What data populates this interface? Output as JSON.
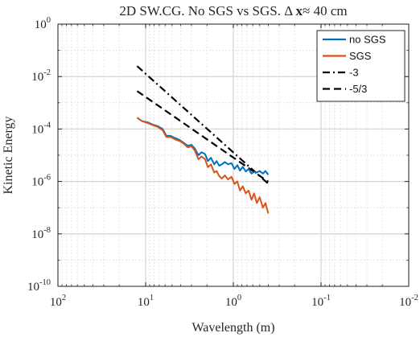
{
  "chart_data": {
    "type": "line",
    "title_parts": [
      "2D SW.CG. No SGS vs SGS. ",
      "Δ ",
      "x",
      "≈ 40 cm"
    ],
    "xlabel": "Wavelength (m)",
    "ylabel": "Kinetic Energy",
    "x_scale": "log",
    "y_scale": "log",
    "x_reversed": true,
    "xlim": [
      100,
      0.01
    ],
    "ylim": [
      1e-10,
      1
    ],
    "x_ticks": [
      {
        "base": "10",
        "exp": "2",
        "value": 100
      },
      {
        "base": "10",
        "exp": "1",
        "value": 10
      },
      {
        "base": "10",
        "exp": "0",
        "value": 1
      },
      {
        "base": "10",
        "exp": "-1",
        "value": 0.1
      },
      {
        "base": "10",
        "exp": "-2",
        "value": 0.01
      }
    ],
    "y_ticks": [
      {
        "base": "10",
        "exp": "0",
        "value": 1
      },
      {
        "base": "10",
        "exp": "-2",
        "value": 0.01
      },
      {
        "base": "10",
        "exp": "-4",
        "value": 0.0001
      },
      {
        "base": "10",
        "exp": "-6",
        "value": 1e-06
      },
      {
        "base": "10",
        "exp": "-8",
        "value": 1e-08
      },
      {
        "base": "10",
        "exp": "-10",
        "value": 1e-10
      }
    ],
    "grid": true,
    "minor_grid": true,
    "legend_position": "top-right",
    "series": [
      {
        "name": "no SGS",
        "color": "#0072BD",
        "style": "solid",
        "x": [
          12.5,
          11.0,
          9.5,
          8.2,
          7.3,
          6.4,
          5.8,
          5.2,
          4.6,
          4.1,
          3.7,
          3.3,
          3.0,
          2.75,
          2.5,
          2.3,
          2.1,
          1.95,
          1.8,
          1.65,
          1.55,
          1.45,
          1.35,
          1.25,
          1.15,
          1.05,
          0.97,
          0.9,
          0.84,
          0.78,
          0.72,
          0.67,
          0.62,
          0.58,
          0.54,
          0.5,
          0.46,
          0.43,
          0.4
        ],
        "y": [
          0.00027,
          0.0002,
          0.00018,
          0.000145,
          0.00013,
          0.0001,
          5.5e-05,
          5.5e-05,
          4.5e-05,
          3.8e-05,
          3e-05,
          2.3e-05,
          2.5e-05,
          1.8e-05,
          1e-05,
          1.3e-05,
          1.1e-05,
          6e-06,
          8e-06,
          4.5e-06,
          6e-06,
          4e-06,
          4.5e-06,
          5.5e-06,
          4.5e-06,
          5e-06,
          3e-06,
          4.2e-06,
          2.6e-06,
          3.6e-06,
          2.4e-06,
          3e-06,
          2e-06,
          2.3e-06,
          2.2e-06,
          2.5e-06,
          2e-06,
          2.5e-06,
          1.8e-06
        ]
      },
      {
        "name": "SGS",
        "color": "#D95319",
        "style": "solid",
        "x": [
          12.5,
          11.0,
          9.5,
          8.2,
          7.3,
          6.4,
          5.8,
          5.2,
          4.6,
          4.1,
          3.7,
          3.3,
          3.0,
          2.75,
          2.5,
          2.3,
          2.1,
          1.95,
          1.8,
          1.65,
          1.55,
          1.45,
          1.35,
          1.25,
          1.15,
          1.05,
          0.97,
          0.9,
          0.84,
          0.78,
          0.72,
          0.67,
          0.62,
          0.58,
          0.54,
          0.5,
          0.46,
          0.43,
          0.4
        ],
        "y": [
          0.00027,
          0.0002,
          0.00017,
          0.00014,
          0.00012,
          9e-05,
          5e-05,
          5e-05,
          4e-05,
          3.5e-05,
          2.8e-05,
          2e-05,
          2.2e-05,
          1.5e-05,
          7e-06,
          9e-06,
          7e-06,
          3.5e-06,
          4.5e-06,
          2.2e-06,
          2.5e-06,
          1.6e-06,
          1.3e-06,
          1.7e-06,
          1.2e-06,
          1.5e-06,
          8e-07,
          1e-06,
          4.5e-07,
          6.5e-07,
          3.5e-07,
          4.5e-07,
          2e-07,
          3.5e-07,
          1.5e-07,
          2.5e-07,
          1e-07,
          1.5e-07,
          6e-08
        ]
      },
      {
        "name": "-3",
        "color": "#000000",
        "style": "dashdot",
        "x": [
          12.5,
          0.4
        ],
        "y": [
          0.025,
          8.2e-07
        ]
      },
      {
        "name": "-5/3",
        "color": "#000000",
        "style": "dashed",
        "x": [
          12.5,
          0.4
        ],
        "y": [
          0.0028,
          9.8e-07
        ]
      }
    ]
  }
}
